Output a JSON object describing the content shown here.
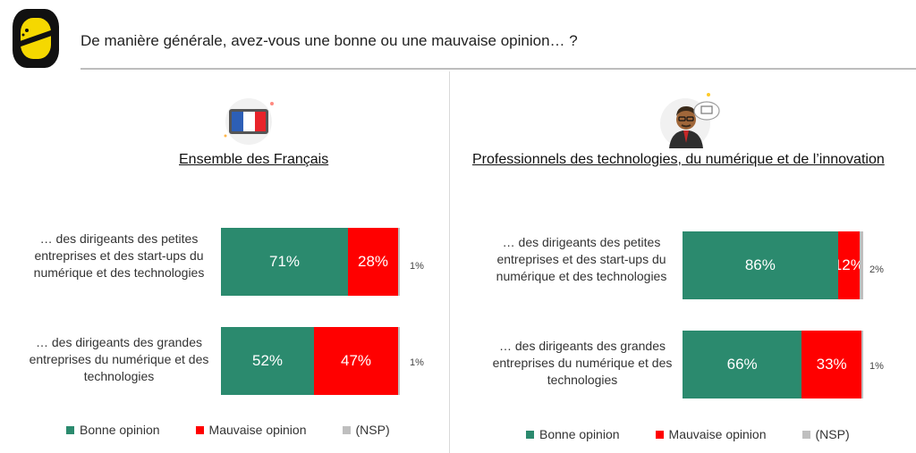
{
  "header": {
    "question": "De manière générale, avez-vous une bonne ou une mauvaise opinion… ?"
  },
  "colors": {
    "good": "#2b8a6e",
    "bad": "#ff0000",
    "nsp": "#bfbfbf"
  },
  "legend": [
    {
      "key": "good",
      "label": "Bonne opinion"
    },
    {
      "key": "bad",
      "label": "Mauvaise opinion"
    },
    {
      "key": "nsp",
      "label": "(NSP)"
    }
  ],
  "chart_data": [
    {
      "type": "bar",
      "stacked": true,
      "orientation": "horizontal",
      "title": "Ensemble des Français",
      "icon": "french-flag-icon",
      "categories": [
        "… des dirigeants des petites entreprises et des start-ups du numérique et des technologies",
        "… des dirigeants des grandes entreprises du numérique et des technologies"
      ],
      "series": [
        {
          "name": "Bonne opinion",
          "values": [
            71,
            52
          ]
        },
        {
          "name": "Mauvaise opinion",
          "values": [
            28,
            47
          ]
        },
        {
          "name": "(NSP)",
          "values": [
            1,
            1
          ]
        }
      ],
      "labels": [
        [
          "71%",
          "28%",
          "1%"
        ],
        [
          "52%",
          "47%",
          "1%"
        ]
      ],
      "legend_position": "bottom"
    },
    {
      "type": "bar",
      "stacked": true,
      "orientation": "horizontal",
      "title": "Professionnels des technologies, du numérique et de l’innovation",
      "icon": "tech-professional-icon",
      "categories": [
        "… des dirigeants des petites entreprises et des start-ups du numérique et des technologies",
        "… des dirigeants des grandes entreprises du numérique et des technologies"
      ],
      "series": [
        {
          "name": "Bonne opinion",
          "values": [
            86,
            66
          ]
        },
        {
          "name": "Mauvaise opinion",
          "values": [
            12,
            33
          ]
        },
        {
          "name": "(NSP)",
          "values": [
            2,
            1
          ]
        }
      ],
      "labels": [
        [
          "86%",
          "12%",
          "2%"
        ],
        [
          "66%",
          "33%",
          "1%"
        ]
      ],
      "legend_position": "bottom"
    }
  ]
}
